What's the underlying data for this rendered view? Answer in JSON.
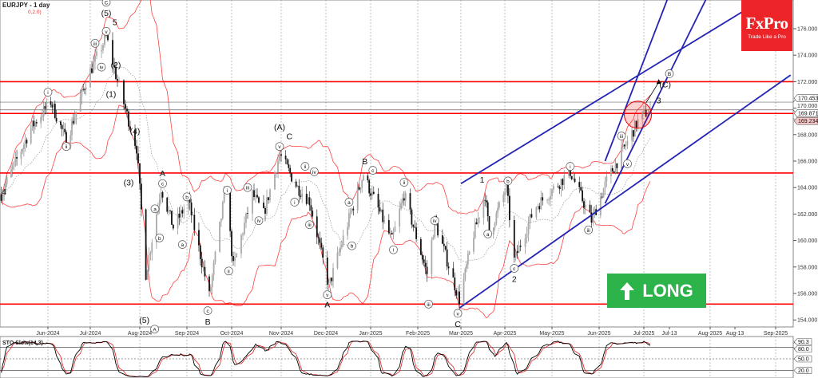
{
  "header": {
    "symbol_timeframe": "EURJPY - 1 day",
    "bb_params": "0,2.0)"
  },
  "logo": {
    "brand": "FxPro",
    "tagline": "Trade Like a Pro",
    "color": "#ec2327"
  },
  "signal": {
    "label": "LONG",
    "icon": "arrow-up-icon",
    "color": "#2cb34a"
  },
  "colors": {
    "levels": "#ff0000",
    "channels": "#2323b4",
    "bands": "#ff4040",
    "stoch_k": "#000000",
    "stoch_d": "#e02020"
  },
  "chart_data": {
    "type": "candlestick",
    "symbol": "EURJPY",
    "timeframe": "1 day",
    "ylim": [
      153,
      178
    ],
    "y_ticks": [
      "154.000",
      "156.000",
      "158.000",
      "160.000",
      "162.000",
      "164.000",
      "166.000",
      "168.000",
      "170.000",
      "172.000",
      "174.000",
      "176.000"
    ],
    "x_ticks": [
      "Jun-2024",
      "Jul-2024",
      "Aug-2024",
      "Sep-2024",
      "Oct-2024",
      "Nov-2024",
      "Dec-2024",
      "Jan-2025",
      "Feb-2025",
      "Mar-2025",
      "Apr-2025",
      "May-2025",
      "Jun-2025",
      "Jul-2025",
      "Jul-13",
      "Aug-2025",
      "Aug-13",
      "Sep-2025"
    ],
    "price_labels": [
      {
        "text": "170.453",
        "value": 170.453,
        "style": "grey"
      },
      {
        "text": "169.871",
        "value": 169.871,
        "style": "grey"
      },
      {
        "text": "169.234",
        "value": 169.234,
        "style": "pink"
      }
    ],
    "horizontal_levels": [
      172.0,
      169.6,
      165.1,
      155.2
    ],
    "price_path": [
      [
        "2024-04-29",
        163.5
      ],
      [
        "2024-05-20",
        168.5
      ],
      [
        "2024-06-03",
        170.5
      ],
      [
        "2024-06-14",
        167.5
      ],
      [
        "2024-06-28",
        172.0
      ],
      [
        "2024-07-11",
        175.4
      ],
      [
        "2024-07-17",
        172.5
      ],
      [
        "2024-07-24",
        169.5
      ],
      [
        "2024-07-30",
        167.0
      ],
      [
        "2024-08-05",
        157.5
      ],
      [
        "2024-08-15",
        164.0
      ],
      [
        "2024-08-23",
        161.0
      ],
      [
        "2024-09-02",
        163.0
      ],
      [
        "2024-09-16",
        155.8
      ],
      [
        "2024-09-27",
        164.0
      ],
      [
        "2024-10-02",
        158.0
      ],
      [
        "2024-10-14",
        163.5
      ],
      [
        "2024-10-21",
        162.0
      ],
      [
        "2024-10-31",
        166.5
      ],
      [
        "2024-11-12",
        164.0
      ],
      [
        "2024-11-20",
        163.0
      ],
      [
        "2024-12-03",
        156.5
      ],
      [
        "2024-12-18",
        162.0
      ],
      [
        "2024-12-27",
        165.0
      ],
      [
        "2025-01-15",
        160.0
      ],
      [
        "2025-01-23",
        163.5
      ],
      [
        "2025-02-07",
        157.5
      ],
      [
        "2025-02-12",
        161.5
      ],
      [
        "2025-02-28",
        155.5
      ],
      [
        "2025-03-10",
        160.5
      ],
      [
        "2025-03-18",
        163.5
      ],
      [
        "2025-03-21",
        160.5
      ],
      [
        "2025-04-02",
        164.0
      ],
      [
        "2025-04-07",
        158.5
      ],
      [
        "2025-04-20",
        162.5
      ],
      [
        "2025-05-13",
        165.2
      ],
      [
        "2025-05-27",
        161.5
      ],
      [
        "2025-06-06",
        164.5
      ],
      [
        "2025-06-18",
        167.0
      ],
      [
        "2025-06-27",
        169.0
      ],
      [
        "2025-07-04",
        169.9
      ]
    ],
    "trendlines": [
      {
        "from": [
          "2025-03-01",
          164.3
        ],
        "to": [
          "2025-09-20",
          180.0
        ]
      },
      {
        "from": [
          "2025-02-28",
          154.9
        ],
        "to": [
          "2025-09-12",
          172.5
        ]
      },
      {
        "from": [
          "2025-06-05",
          166.0
        ],
        "to": [
          "2025-07-12",
          178.2
        ]
      },
      {
        "from": [
          "2025-06-05",
          162.8
        ],
        "to": [
          "2025-07-30",
          178.2
        ]
      }
    ],
    "target_zone": {
      "date": "2025-06-27",
      "price": 169.5
    },
    "target_arrow": {
      "from": [
        "2025-07-02",
        170.4
      ],
      "to": [
        "2025-07-08",
        172.2
      ]
    },
    "wave_labels": [
      {
        "t": "4",
        "d": "2024-05-01",
        "p": 163.7,
        "c": false
      },
      {
        "t": "C",
        "d": "2024-07-11",
        "p": 178.0,
        "c": true
      },
      {
        "t": "(5)",
        "d": "2024-07-11",
        "p": 177.2,
        "c": false
      },
      {
        "t": "5",
        "d": "2024-07-11",
        "p": 176.5,
        "c": false
      },
      {
        "t": "v",
        "d": "2024-07-11",
        "p": 175.8,
        "c": true
      },
      {
        "t": "iii",
        "d": "2024-07-04",
        "p": 174.9,
        "c": true
      },
      {
        "t": "iv",
        "d": "2024-07-08",
        "p": 173.1,
        "c": true
      },
      {
        "t": "(2)",
        "d": "2024-07-17",
        "p": 173.3,
        "c": false
      },
      {
        "t": "(1)",
        "d": "2024-07-14",
        "p": 171.1,
        "c": false
      },
      {
        "t": "i",
        "d": "2024-06-01",
        "p": 171.2,
        "c": true
      },
      {
        "t": "ii",
        "d": "2024-06-14",
        "p": 167.1,
        "c": true
      },
      {
        "t": "(4)",
        "d": "2024-07-29",
        "p": 168.3,
        "c": false
      },
      {
        "t": "(3)",
        "d": "2024-07-25",
        "p": 164.4,
        "c": false
      },
      {
        "t": "A",
        "d": "2024-08-16",
        "p": 165.1,
        "c": false
      },
      {
        "t": "c",
        "d": "2024-08-16",
        "p": 164.3,
        "c": true
      },
      {
        "t": "a",
        "d": "2024-08-11",
        "p": 162.4,
        "c": true
      },
      {
        "t": "b",
        "d": "2024-08-14",
        "p": 160.2,
        "c": true
      },
      {
        "t": "(5)",
        "d": "2024-08-04",
        "p": 154.0,
        "c": false
      },
      {
        "t": "A",
        "d": "2024-08-04",
        "p": 153.3,
        "c": true
      },
      {
        "t": "b",
        "d": "2024-09-01",
        "p": 163.3,
        "c": true
      },
      {
        "t": "a",
        "d": "2024-08-29",
        "p": 159.7,
        "c": true
      },
      {
        "t": "c",
        "d": "2024-09-15",
        "p": 154.7,
        "c": true
      },
      {
        "t": "B",
        "d": "2024-09-15",
        "p": 153.9,
        "c": false
      },
      {
        "t": "i",
        "d": "2024-09-28",
        "p": 163.8,
        "c": true
      },
      {
        "t": "ii",
        "d": "2024-09-29",
        "p": 157.7,
        "c": true
      },
      {
        "t": "iii",
        "d": "2024-10-11",
        "p": 164.0,
        "c": true
      },
      {
        "t": "iv",
        "d": "2024-10-18",
        "p": 161.5,
        "c": true
      },
      {
        "t": "(A)",
        "d": "2024-10-31",
        "p": 168.6,
        "c": false
      },
      {
        "t": "C",
        "d": "2024-10-31",
        "p": 167.9,
        "c": false
      },
      {
        "t": "v",
        "d": "2024-10-31",
        "p": 167.1,
        "c": true
      },
      {
        "t": "ii",
        "d": "2024-11-17",
        "p": 165.6,
        "c": true
      },
      {
        "t": "iv",
        "d": "2024-11-21",
        "p": 165.2,
        "c": true
      },
      {
        "t": "i",
        "d": "2024-11-10",
        "p": 162.9,
        "c": true
      },
      {
        "t": "iii",
        "d": "2024-11-20",
        "p": 161.2,
        "c": true
      },
      {
        "t": "v",
        "d": "2024-12-02",
        "p": 155.9,
        "c": true
      },
      {
        "t": "A",
        "d": "2024-12-02",
        "p": 155.2,
        "c": false
      },
      {
        "t": "a",
        "d": "2024-12-17",
        "p": 162.9,
        "c": true
      },
      {
        "t": "b",
        "d": "2024-12-19",
        "p": 159.6,
        "c": true
      },
      {
        "t": "B",
        "d": "2024-12-28",
        "p": 166.0,
        "c": false
      },
      {
        "t": "c",
        "d": "2024-12-28",
        "p": 165.3,
        "c": true
      },
      {
        "t": "ii",
        "d": "2025-01-23",
        "p": 164.4,
        "c": true
      },
      {
        "t": "i",
        "d": "2025-01-16",
        "p": 159.3,
        "c": true
      },
      {
        "t": "iv",
        "d": "2025-02-12",
        "p": 161.5,
        "c": true
      },
      {
        "t": "iii",
        "d": "2025-02-08",
        "p": 155.2,
        "c": true
      },
      {
        "t": "v",
        "d": "2025-02-27",
        "p": 154.5,
        "c": true
      },
      {
        "t": "C",
        "d": "2025-02-27",
        "p": 153.7,
        "c": false
      },
      {
        "t": "1",
        "d": "2025-03-16",
        "p": 164.6,
        "c": false
      },
      {
        "t": "b",
        "d": "2025-04-03",
        "p": 164.5,
        "c": true
      },
      {
        "t": "a",
        "d": "2025-03-20",
        "p": 160.5,
        "c": true
      },
      {
        "t": "c",
        "d": "2025-04-07",
        "p": 157.9,
        "c": true
      },
      {
        "t": "2",
        "d": "2025-04-07",
        "p": 157.1,
        "c": false
      },
      {
        "t": "i",
        "d": "2025-05-13",
        "p": 165.6,
        "c": true
      },
      {
        "t": "iii",
        "d": "2025-05-25",
        "p": 160.8,
        "c": true
      },
      {
        "t": "iii",
        "d": "2025-06-16",
        "p": 167.9,
        "c": true
      },
      {
        "t": "v",
        "d": "2025-06-20",
        "p": 165.8,
        "c": true
      },
      {
        "t": "3",
        "d": "2025-07-08",
        "p": 170.6,
        "c": false
      },
      {
        "t": "(C)",
        "d": "2025-07-11",
        "p": 171.8,
        "c": false
      },
      {
        "t": "B",
        "d": "2025-07-13",
        "p": 172.6,
        "c": true
      }
    ],
    "stochastic": {
      "label": "STO Slow(14,3)",
      "ylim": [
        0,
        100
      ],
      "levels": [
        80,
        50,
        20
      ],
      "axis_labels": [
        "90.3",
        "80.0",
        "50.0",
        "20.0"
      ]
    }
  }
}
